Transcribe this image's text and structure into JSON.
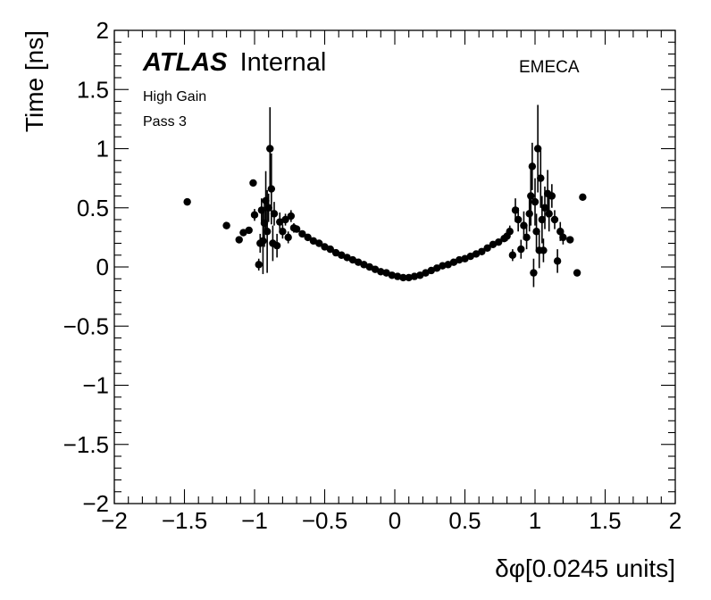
{
  "chart_data": {
    "type": "scatter",
    "xlabel": "δφ[0.0245 units]",
    "ylabel": "Time [ns]",
    "xlim": [
      -2,
      2
    ],
    "ylim": [
      -2,
      2
    ],
    "x_ticks": [
      {
        "v": -2,
        "label": "−2"
      },
      {
        "v": -1.5,
        "label": "−1.5"
      },
      {
        "v": -1,
        "label": "−1"
      },
      {
        "v": -0.5,
        "label": "−0.5"
      },
      {
        "v": 0,
        "label": "0"
      },
      {
        "v": 0.5,
        "label": "0.5"
      },
      {
        "v": 1,
        "label": "1"
      },
      {
        "v": 1.5,
        "label": "1.5"
      },
      {
        "v": 2,
        "label": "2"
      }
    ],
    "y_ticks": [
      {
        "v": -2,
        "label": "−2"
      },
      {
        "v": -1.5,
        "label": "−1.5"
      },
      {
        "v": -1,
        "label": "−1"
      },
      {
        "v": -0.5,
        "label": "−0.5"
      },
      {
        "v": 0,
        "label": "0"
      },
      {
        "v": 0.5,
        "label": "0.5"
      },
      {
        "v": 1,
        "label": "1"
      },
      {
        "v": 1.5,
        "label": "1.5"
      },
      {
        "v": 2,
        "label": "2"
      }
    ],
    "grid": false,
    "annotations": {
      "experiment_bold": "ATLAS",
      "experiment_status": "Internal",
      "detector": "EMECA",
      "gain": "High Gain",
      "pass": "Pass 3"
    },
    "outlier_points": [
      {
        "x": -1.48,
        "y": 0.55,
        "err": 0.0
      },
      {
        "x": -1.2,
        "y": 0.35,
        "err": 0.0
      },
      {
        "x": -1.11,
        "y": 0.23,
        "err": 0.0
      },
      {
        "x": -1.08,
        "y": 0.29,
        "err": 0.0
      },
      {
        "x": -1.04,
        "y": 0.31,
        "err": 0.0
      },
      {
        "x": -1.01,
        "y": 0.71,
        "err": 0.0
      },
      {
        "x": -1.0,
        "y": 0.44,
        "err": 0.05
      },
      {
        "x": -0.97,
        "y": 0.02,
        "err": 0.05
      },
      {
        "x": -0.96,
        "y": 0.2,
        "err": 0.08
      },
      {
        "x": -0.95,
        "y": 0.48,
        "err": 0.1
      },
      {
        "x": -0.94,
        "y": 0.22,
        "err": 0.28
      },
      {
        "x": -0.93,
        "y": 0.37,
        "err": 0.2
      },
      {
        "x": -0.92,
        "y": 0.56,
        "err": 0.25
      },
      {
        "x": -0.91,
        "y": 0.3,
        "err": 0.35
      },
      {
        "x": -0.9,
        "y": 0.5,
        "err": 0.12
      },
      {
        "x": -0.89,
        "y": 1.0,
        "err": 0.35
      },
      {
        "x": -0.88,
        "y": 0.66,
        "err": 0.3
      },
      {
        "x": -0.87,
        "y": 0.2,
        "err": 0.15
      },
      {
        "x": -0.86,
        "y": 0.45,
        "err": 0.1
      },
      {
        "x": -0.84,
        "y": 0.18,
        "err": 0.1
      },
      {
        "x": -0.82,
        "y": 0.38,
        "err": 0.08
      },
      {
        "x": -0.8,
        "y": 0.3,
        "err": 0.06
      },
      {
        "x": -0.78,
        "y": 0.4,
        "err": 0.05
      },
      {
        "x": -0.76,
        "y": 0.25,
        "err": 0.05
      },
      {
        "x": -0.74,
        "y": 0.43,
        "err": 0.05
      },
      {
        "x": -0.72,
        "y": 0.33,
        "err": 0.04
      },
      {
        "x": 0.8,
        "y": 0.26,
        "err": 0.04
      },
      {
        "x": 0.82,
        "y": 0.3,
        "err": 0.05
      },
      {
        "x": 0.84,
        "y": 0.1,
        "err": 0.05
      },
      {
        "x": 0.86,
        "y": 0.48,
        "err": 0.1
      },
      {
        "x": 0.88,
        "y": 0.4,
        "err": 0.1
      },
      {
        "x": 0.9,
        "y": 0.15,
        "err": 0.08
      },
      {
        "x": 0.92,
        "y": 0.35,
        "err": 0.12
      },
      {
        "x": 0.94,
        "y": 0.25,
        "err": 0.1
      },
      {
        "x": 0.96,
        "y": 0.45,
        "err": 0.15
      },
      {
        "x": 0.97,
        "y": 0.6,
        "err": 0.25
      },
      {
        "x": 0.98,
        "y": 0.85,
        "err": 0.2
      },
      {
        "x": 0.99,
        "y": -0.05,
        "err": 0.12
      },
      {
        "x": 1.0,
        "y": 0.55,
        "err": 0.2
      },
      {
        "x": 1.01,
        "y": 0.3,
        "err": 0.15
      },
      {
        "x": 1.02,
        "y": 1.0,
        "err": 0.37
      },
      {
        "x": 1.03,
        "y": 0.14,
        "err": 0.15
      },
      {
        "x": 1.04,
        "y": 0.75,
        "err": 0.25
      },
      {
        "x": 1.05,
        "y": 0.4,
        "err": 0.2
      },
      {
        "x": 1.06,
        "y": 0.14,
        "err": 0.1
      },
      {
        "x": 1.07,
        "y": 0.5,
        "err": 0.18
      },
      {
        "x": 1.09,
        "y": 0.62,
        "err": 0.2
      },
      {
        "x": 1.1,
        "y": 0.45,
        "err": 0.15
      },
      {
        "x": 1.12,
        "y": 0.6,
        "err": 0.1
      },
      {
        "x": 1.14,
        "y": 0.4,
        "err": 0.08
      },
      {
        "x": 1.16,
        "y": 0.05,
        "err": 0.1
      },
      {
        "x": 1.18,
        "y": 0.3,
        "err": 0.08
      },
      {
        "x": 1.2,
        "y": 0.25,
        "err": 0.06
      },
      {
        "x": 1.25,
        "y": 0.23,
        "err": 0.0
      },
      {
        "x": 1.3,
        "y": -0.05,
        "err": 0.0
      },
      {
        "x": 1.34,
        "y": 0.59,
        "err": 0.0
      }
    ],
    "curve_points": [
      {
        "x": -0.7,
        "y": 0.32
      },
      {
        "x": -0.66,
        "y": 0.28
      },
      {
        "x": -0.62,
        "y": 0.25
      },
      {
        "x": -0.58,
        "y": 0.22
      },
      {
        "x": -0.54,
        "y": 0.2
      },
      {
        "x": -0.5,
        "y": 0.17
      },
      {
        "x": -0.46,
        "y": 0.15
      },
      {
        "x": -0.42,
        "y": 0.12
      },
      {
        "x": -0.38,
        "y": 0.1
      },
      {
        "x": -0.34,
        "y": 0.08
      },
      {
        "x": -0.3,
        "y": 0.06
      },
      {
        "x": -0.26,
        "y": 0.04
      },
      {
        "x": -0.22,
        "y": 0.02
      },
      {
        "x": -0.18,
        "y": 0.0
      },
      {
        "x": -0.14,
        "y": -0.02
      },
      {
        "x": -0.1,
        "y": -0.04
      },
      {
        "x": -0.06,
        "y": -0.05
      },
      {
        "x": -0.02,
        "y": -0.07
      },
      {
        "x": 0.02,
        "y": -0.08
      },
      {
        "x": 0.06,
        "y": -0.09
      },
      {
        "x": 0.1,
        "y": -0.09
      },
      {
        "x": 0.14,
        "y": -0.08
      },
      {
        "x": 0.18,
        "y": -0.07
      },
      {
        "x": 0.22,
        "y": -0.05
      },
      {
        "x": 0.26,
        "y": -0.03
      },
      {
        "x": 0.3,
        "y": -0.01
      },
      {
        "x": 0.34,
        "y": 0.01
      },
      {
        "x": 0.38,
        "y": 0.02
      },
      {
        "x": 0.42,
        "y": 0.04
      },
      {
        "x": 0.46,
        "y": 0.06
      },
      {
        "x": 0.5,
        "y": 0.07
      },
      {
        "x": 0.54,
        "y": 0.09
      },
      {
        "x": 0.58,
        "y": 0.11
      },
      {
        "x": 0.62,
        "y": 0.13
      },
      {
        "x": 0.66,
        "y": 0.16
      },
      {
        "x": 0.7,
        "y": 0.19
      },
      {
        "x": 0.74,
        "y": 0.21
      },
      {
        "x": 0.78,
        "y": 0.24
      }
    ]
  }
}
